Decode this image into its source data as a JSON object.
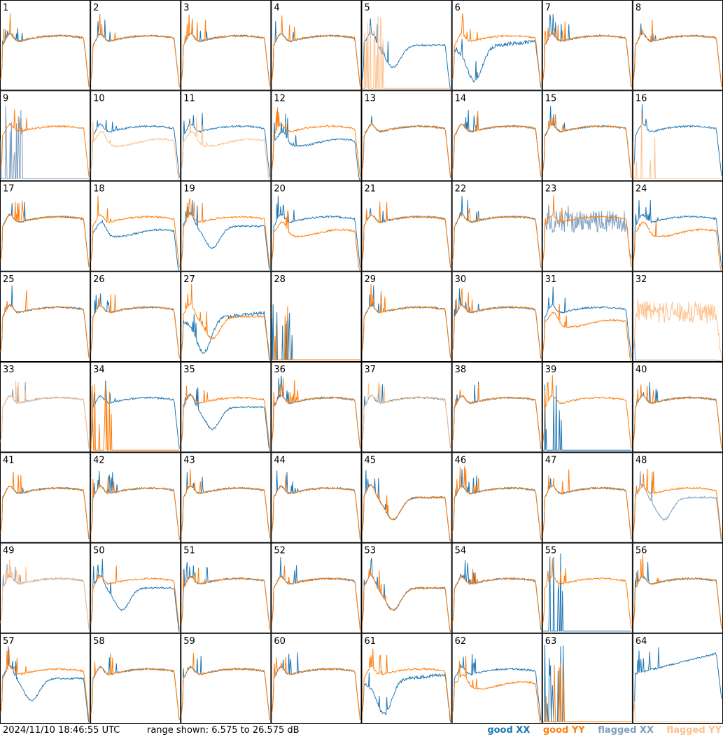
{
  "footer": {
    "timestamp": "2024/11/10 18:46:55 UTC",
    "range_text": "range shown: 6.575 to 26.575 dB"
  },
  "legend": [
    {
      "label": "good XX",
      "color": "#1f77b4"
    },
    {
      "label": "good YY",
      "color": "#ff7f0e"
    },
    {
      "label": "flagged XX",
      "color": "#7f9fbf"
    },
    {
      "label": "flagged YY",
      "color": "#ffc08c"
    }
  ],
  "chart_data": {
    "type": "line",
    "layout": "small-multiples 8x8",
    "y_range_db": [
      6.575,
      26.575
    ],
    "panels": [
      {
        "id": "1",
        "xx": "good",
        "yy": "good",
        "xx_shape": "normal",
        "yy_shape": "normal"
      },
      {
        "id": "2",
        "xx": "good",
        "yy": "good",
        "xx_shape": "normal",
        "yy_shape": "normal"
      },
      {
        "id": "3",
        "xx": "good",
        "yy": "good",
        "xx_shape": "normal",
        "yy_shape": "normal"
      },
      {
        "id": "4",
        "xx": "good",
        "yy": "good",
        "xx_shape": "normal",
        "yy_shape": "normal"
      },
      {
        "id": "5",
        "xx": "good",
        "yy": "flagged",
        "xx_shape": "dipped",
        "yy_shape": "dead"
      },
      {
        "id": "6",
        "xx": "good",
        "yy": "good",
        "xx_shape": "deepdip",
        "yy_shape": "normal"
      },
      {
        "id": "7",
        "xx": "good",
        "yy": "good",
        "xx_shape": "normal",
        "yy_shape": "normal"
      },
      {
        "id": "8",
        "xx": "good",
        "yy": "good",
        "xx_shape": "normal",
        "yy_shape": "normal"
      },
      {
        "id": "9",
        "xx": "flagged",
        "yy": "good",
        "xx_shape": "dead",
        "yy_shape": "normal"
      },
      {
        "id": "10",
        "xx": "good",
        "yy": "flagged",
        "xx_shape": "normal",
        "yy_shape": "low"
      },
      {
        "id": "11",
        "xx": "good",
        "yy": "flagged",
        "xx_shape": "normal",
        "yy_shape": "low"
      },
      {
        "id": "12",
        "xx": "good",
        "yy": "good",
        "xx_shape": "low",
        "yy_shape": "normal"
      },
      {
        "id": "13",
        "xx": "good",
        "yy": "good",
        "xx_shape": "normal",
        "yy_shape": "normal"
      },
      {
        "id": "14",
        "xx": "good",
        "yy": "good",
        "xx_shape": "normal",
        "yy_shape": "normal"
      },
      {
        "id": "15",
        "xx": "good",
        "yy": "good",
        "xx_shape": "normal",
        "yy_shape": "normal"
      },
      {
        "id": "16",
        "xx": "good",
        "yy": "flagged",
        "xx_shape": "normal",
        "yy_shape": "dead"
      },
      {
        "id": "17",
        "xx": "good",
        "yy": "good",
        "xx_shape": "normal",
        "yy_shape": "normal"
      },
      {
        "id": "18",
        "xx": "good",
        "yy": "good",
        "xx_shape": "low",
        "yy_shape": "normal"
      },
      {
        "id": "19",
        "xx": "good",
        "yy": "good",
        "xx_shape": "dipped",
        "yy_shape": "normal"
      },
      {
        "id": "20",
        "xx": "good",
        "yy": "good",
        "xx_shape": "normal",
        "yy_shape": "low"
      },
      {
        "id": "21",
        "xx": "good",
        "yy": "good",
        "xx_shape": "normal",
        "yy_shape": "normal"
      },
      {
        "id": "22",
        "xx": "good",
        "yy": "good",
        "xx_shape": "normal",
        "yy_shape": "normal"
      },
      {
        "id": "23",
        "xx": "flagged",
        "yy": "good",
        "xx_shape": "noisy",
        "yy_shape": "normal"
      },
      {
        "id": "24",
        "xx": "good",
        "yy": "good",
        "xx_shape": "normal",
        "yy_shape": "low"
      },
      {
        "id": "25",
        "xx": "good",
        "yy": "good",
        "xx_shape": "normal",
        "yy_shape": "normal"
      },
      {
        "id": "26",
        "xx": "good",
        "yy": "good",
        "xx_shape": "normal",
        "yy_shape": "normal"
      },
      {
        "id": "27",
        "xx": "good",
        "yy": "good",
        "xx_shape": "deepdip",
        "yy_shape": "dipped"
      },
      {
        "id": "28",
        "xx": "good",
        "yy": "good",
        "xx_shape": "dead",
        "yy_shape": "dead"
      },
      {
        "id": "29",
        "xx": "good",
        "yy": "good",
        "xx_shape": "normal",
        "yy_shape": "normal"
      },
      {
        "id": "30",
        "xx": "good",
        "yy": "good",
        "xx_shape": "normal",
        "yy_shape": "normal"
      },
      {
        "id": "31",
        "xx": "good",
        "yy": "good",
        "xx_shape": "normal",
        "yy_shape": "low"
      },
      {
        "id": "32",
        "xx": "flagged",
        "yy": "flagged",
        "xx_shape": "flat",
        "yy_shape": "noisy"
      },
      {
        "id": "33",
        "xx": "flagged",
        "yy": "flagged",
        "xx_shape": "normal",
        "yy_shape": "normal"
      },
      {
        "id": "34",
        "xx": "good",
        "yy": "good",
        "xx_shape": "normal",
        "yy_shape": "dead"
      },
      {
        "id": "35",
        "xx": "good",
        "yy": "good",
        "xx_shape": "dipped",
        "yy_shape": "normal"
      },
      {
        "id": "36",
        "xx": "good",
        "yy": "good",
        "xx_shape": "normal",
        "yy_shape": "normal"
      },
      {
        "id": "37",
        "xx": "good",
        "yy": "flagged",
        "xx_shape": "normal",
        "yy_shape": "normal"
      },
      {
        "id": "38",
        "xx": "good",
        "yy": "good",
        "xx_shape": "normal",
        "yy_shape": "normal"
      },
      {
        "id": "39",
        "xx": "good",
        "yy": "good",
        "xx_shape": "dead",
        "yy_shape": "normal"
      },
      {
        "id": "40",
        "xx": "good",
        "yy": "good",
        "xx_shape": "normal",
        "yy_shape": "normal"
      },
      {
        "id": "41",
        "xx": "good",
        "yy": "good",
        "xx_shape": "normal",
        "yy_shape": "normal"
      },
      {
        "id": "42",
        "xx": "good",
        "yy": "good",
        "xx_shape": "normal",
        "yy_shape": "normal"
      },
      {
        "id": "43",
        "xx": "good",
        "yy": "good",
        "xx_shape": "normal",
        "yy_shape": "normal"
      },
      {
        "id": "44",
        "xx": "good",
        "yy": "good",
        "xx_shape": "normal",
        "yy_shape": "normal"
      },
      {
        "id": "45",
        "xx": "good",
        "yy": "good",
        "xx_shape": "dipped",
        "yy_shape": "dipped"
      },
      {
        "id": "46",
        "xx": "good",
        "yy": "good",
        "xx_shape": "normal",
        "yy_shape": "normal"
      },
      {
        "id": "47",
        "xx": "good",
        "yy": "good",
        "xx_shape": "normal",
        "yy_shape": "normal"
      },
      {
        "id": "48",
        "xx": "flagged",
        "yy": "good",
        "xx_shape": "dipped",
        "yy_shape": "normal"
      },
      {
        "id": "49",
        "xx": "flagged",
        "yy": "flagged",
        "xx_shape": "normal",
        "yy_shape": "normal"
      },
      {
        "id": "50",
        "xx": "good",
        "yy": "good",
        "xx_shape": "dipped",
        "yy_shape": "normal"
      },
      {
        "id": "51",
        "xx": "good",
        "yy": "good",
        "xx_shape": "normal",
        "yy_shape": "normal"
      },
      {
        "id": "52",
        "xx": "good",
        "yy": "good",
        "xx_shape": "normal",
        "yy_shape": "normal"
      },
      {
        "id": "53",
        "xx": "good",
        "yy": "good",
        "xx_shape": "dipped",
        "yy_shape": "dipped"
      },
      {
        "id": "54",
        "xx": "good",
        "yy": "good",
        "xx_shape": "normal",
        "yy_shape": "normal"
      },
      {
        "id": "55",
        "xx": "good",
        "yy": "good",
        "xx_shape": "dead",
        "yy_shape": "normal"
      },
      {
        "id": "56",
        "xx": "good",
        "yy": "good",
        "xx_shape": "normal",
        "yy_shape": "normal"
      },
      {
        "id": "57",
        "xx": "good",
        "yy": "good",
        "xx_shape": "dipped",
        "yy_shape": "normal"
      },
      {
        "id": "58",
        "xx": "good",
        "yy": "good",
        "xx_shape": "normal",
        "yy_shape": "normal"
      },
      {
        "id": "59",
        "xx": "good",
        "yy": "good",
        "xx_shape": "normal",
        "yy_shape": "normal"
      },
      {
        "id": "60",
        "xx": "good",
        "yy": "good",
        "xx_shape": "normal",
        "yy_shape": "normal"
      },
      {
        "id": "61",
        "xx": "good",
        "yy": "good",
        "xx_shape": "deepdip",
        "yy_shape": "normal"
      },
      {
        "id": "62",
        "xx": "good",
        "yy": "good",
        "xx_shape": "normal",
        "yy_shape": "low"
      },
      {
        "id": "63",
        "xx": "good",
        "yy": "good",
        "xx_shape": "dead",
        "yy_shape": "dead"
      },
      {
        "id": "64",
        "xx": "good",
        "yy": "flagged",
        "xx_shape": "rising",
        "yy_shape": "flat"
      }
    ]
  }
}
